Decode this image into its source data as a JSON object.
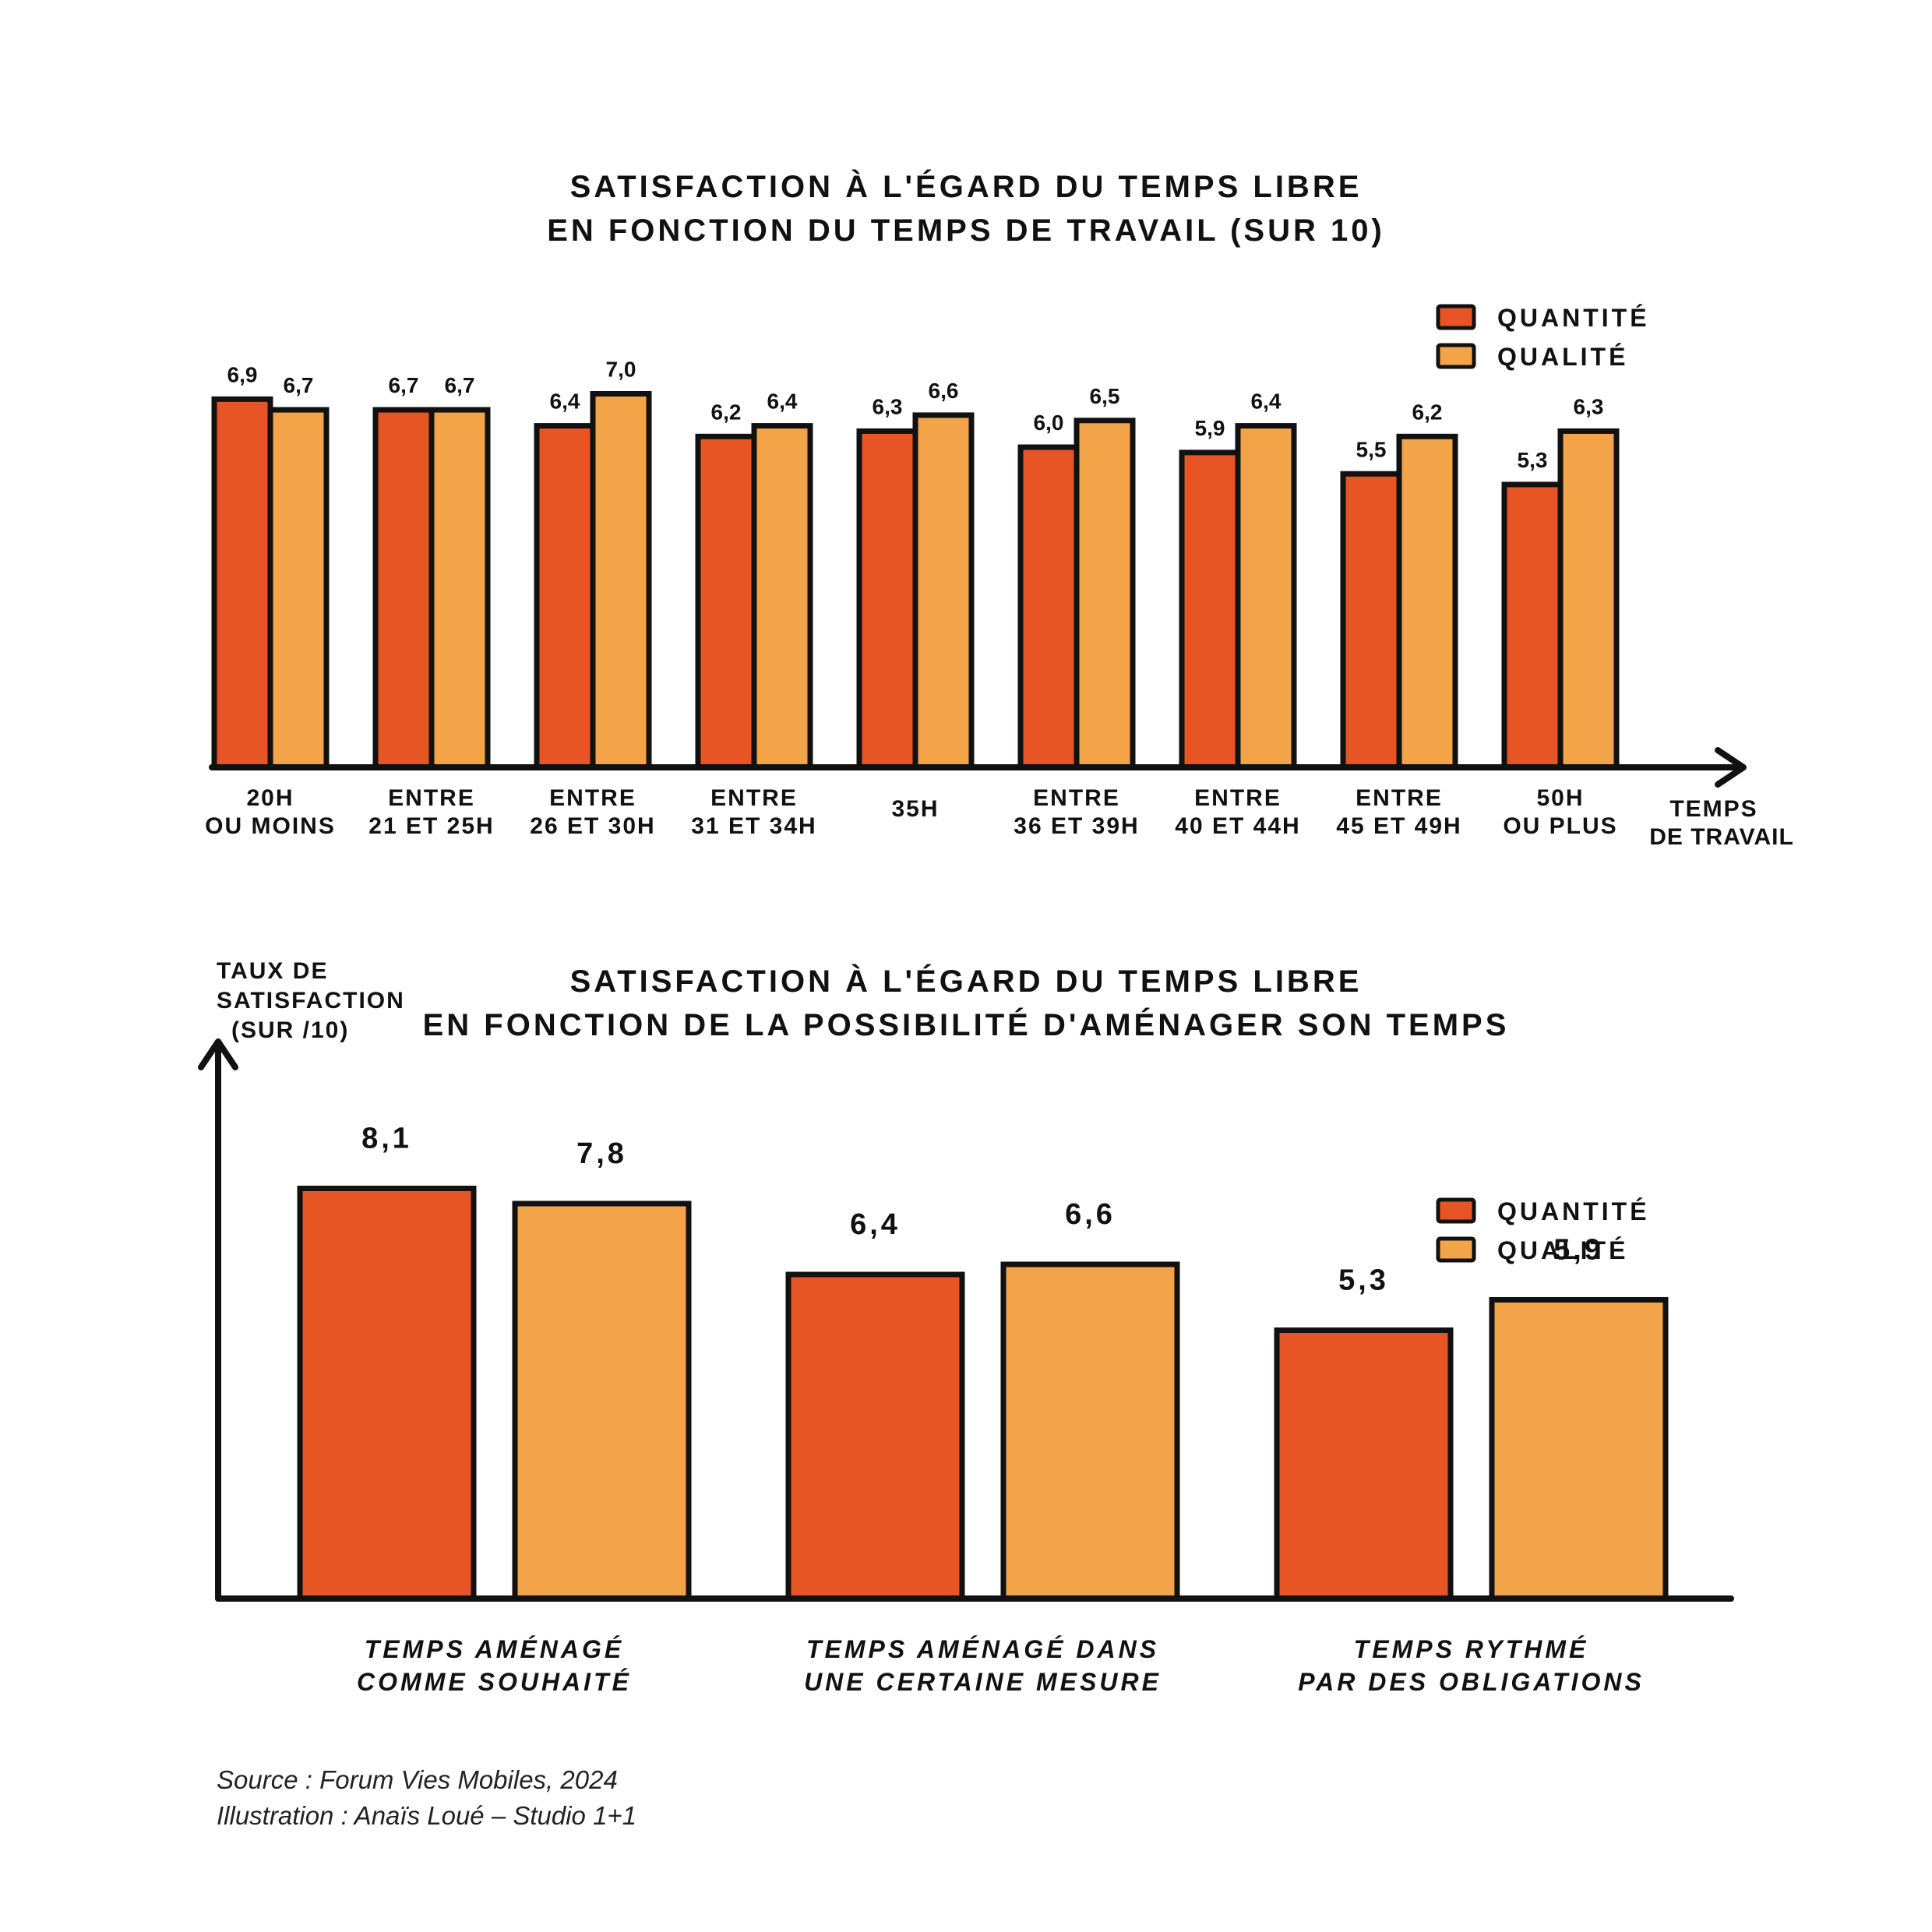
{
  "colors": {
    "quantite": "#e85524",
    "qualite": "#f3a448",
    "outline": "#111111"
  },
  "chart1": {
    "title_line1": "SATISFACTION À L'ÉGARD DU TEMPS LIBRE",
    "title_line2": "EN FONCTION DU TEMPS DE TRAVAIL (SUR 10)",
    "xlabel_line1": "TEMPS",
    "xlabel_line2": "DE TRAVAIL",
    "legend": [
      "QUANTITÉ",
      "QUALITÉ"
    ]
  },
  "chart2": {
    "title_line1": "SATISFACTION À L'ÉGARD DU TEMPS LIBRE",
    "title_line2": "EN FONCTION DE LA POSSIBILITÉ D'AMÉNAGER SON TEMPS",
    "ylabel_lines": [
      "TAUX DE",
      "SATISFACTION",
      "(SUR /10)"
    ],
    "legend": [
      "QUANTITÉ",
      "QUALITÉ"
    ]
  },
  "chart_data": [
    {
      "type": "bar",
      "title": "SATISFACTION À L'ÉGARD DU TEMPS LIBRE EN FONCTION DU TEMPS DE TRAVAIL (SUR 10)",
      "xlabel": "TEMPS DE TRAVAIL",
      "ylabel": "",
      "categories": [
        [
          "20H",
          "OU MOINS"
        ],
        [
          "ENTRE",
          "21 ET 25H"
        ],
        [
          "ENTRE",
          "26 ET 30H"
        ],
        [
          "ENTRE",
          "31 ET 34H"
        ],
        [
          "35H"
        ],
        [
          "ENTRE",
          "36 ET 39H"
        ],
        [
          "ENTRE",
          "40 ET 44H"
        ],
        [
          "ENTRE",
          "45 ET 49H"
        ],
        [
          "50H",
          "OU PLUS"
        ]
      ],
      "series": [
        {
          "name": "QUANTITÉ",
          "values": [
            6.9,
            6.7,
            6.4,
            6.2,
            6.3,
            6.0,
            5.9,
            5.5,
            5.3
          ],
          "labels": [
            "6,9",
            "6,7",
            "6,4",
            "6,2",
            "6,3",
            "6,0",
            "5,9",
            "5,5",
            "5,3"
          ]
        },
        {
          "name": "QUALITÉ",
          "values": [
            6.7,
            6.7,
            7.0,
            6.4,
            6.6,
            6.5,
            6.4,
            6.2,
            6.3
          ],
          "labels": [
            "6,7",
            "6,7",
            "7,0",
            "6,4",
            "6,6",
            "6,5",
            "6,4",
            "6,2",
            "6,3"
          ]
        }
      ],
      "legend": "top-right",
      "grid": false
    },
    {
      "type": "bar",
      "title": "SATISFACTION À L'ÉGARD DU TEMPS LIBRE EN FONCTION DE LA POSSIBILITÉ D'AMÉNAGER SON TEMPS",
      "xlabel": "",
      "ylabel": "TAUX DE SATISFACTION (SUR /10)",
      "categories": [
        [
          "TEMPS AMÉNAGÉ",
          "COMME SOUHAITÉ"
        ],
        [
          "TEMPS AMÉNAGÉ DANS",
          "UNE CERTAINE MESURE"
        ],
        [
          "TEMPS RYTHMÉ",
          "PAR DES OBLIGATIONS"
        ]
      ],
      "series": [
        {
          "name": "QUANTITÉ",
          "values": [
            8.1,
            6.4,
            5.3
          ],
          "labels": [
            "8,1",
            "6,4",
            "5,3"
          ]
        },
        {
          "name": "QUALITÉ",
          "values": [
            7.8,
            6.6,
            5.9
          ],
          "labels": [
            "7,8",
            "6,6",
            "5,9"
          ]
        }
      ],
      "legend": "right",
      "grid": false
    }
  ],
  "source": {
    "line1": "Source : Forum Vies Mobiles, 2024",
    "line2": "Illustration : Anaïs Loué – Studio 1+1"
  }
}
